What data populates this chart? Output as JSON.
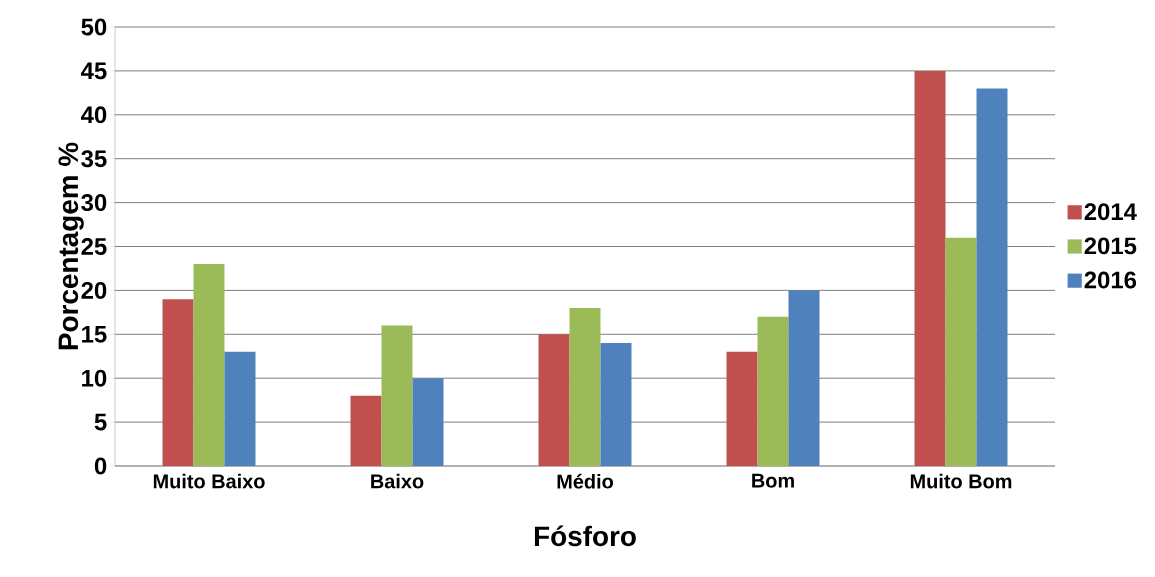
{
  "chart_data": {
    "type": "bar",
    "xlabel": "Fósforo",
    "ylabel": "Porcentagem %",
    "categories": [
      "Muito Baixo",
      "Baixo",
      "Médio",
      "Bom",
      "Muito Bom"
    ],
    "series": [
      {
        "name": "2014",
        "color": "#c0504d",
        "values": [
          19,
          8,
          15,
          13,
          45
        ]
      },
      {
        "name": "2015",
        "color": "#9bbb59",
        "values": [
          23,
          16,
          18,
          17,
          26
        ]
      },
      {
        "name": "2016",
        "color": "#4f81bd",
        "values": [
          13,
          10,
          14,
          20,
          43
        ]
      }
    ],
    "ylim": [
      0,
      50
    ],
    "yticks": [
      0,
      5,
      10,
      15,
      20,
      25,
      30,
      35,
      40,
      45,
      50
    ],
    "grid": "y",
    "legend": "right"
  }
}
